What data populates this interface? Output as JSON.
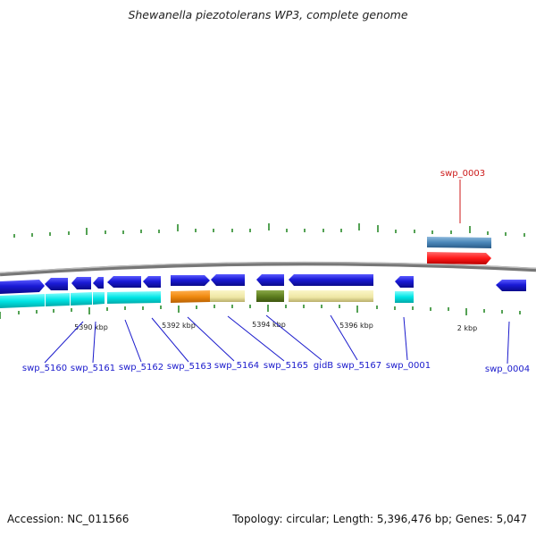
{
  "title": "Shewanella piezotolerans WP3, complete genome",
  "footer": {
    "accession": "Accession: NC_011566",
    "summary": "Topology: circular; Length: 5,396,476 bp; Genes: 5,047"
  },
  "colors": {
    "backbone": "#8a8a8a",
    "forward_gene": "#1a1ad6",
    "cds": "#00e5e5",
    "tick": "#2a8a2a",
    "label_blue": "#1a1acc",
    "label_red": "#cc1a1a",
    "highlight_gene": "#ff1a1a",
    "highlight_track": "#4a86b8"
  },
  "scale_labels": [
    "5390 kbp",
    "5392 kbp",
    "5394 kbp",
    "5396 kbp",
    "2 kbp"
  ],
  "genes": [
    {
      "label": "swp_5160",
      "color": "blue"
    },
    {
      "label": "swp_5161",
      "color": "blue"
    },
    {
      "label": "swp_5162",
      "color": "blue"
    },
    {
      "label": "swp_5163",
      "color": "blue"
    },
    {
      "label": "swp_5164",
      "color": "blue"
    },
    {
      "label": "swp_5165",
      "color": "blue"
    },
    {
      "label": "gidB",
      "color": "blue"
    },
    {
      "label": "swp_5167",
      "color": "blue"
    },
    {
      "label": "swp_0001",
      "color": "blue"
    },
    {
      "label": "swp_0004",
      "color": "blue"
    },
    {
      "label": "swp_0003",
      "color": "red"
    }
  ]
}
